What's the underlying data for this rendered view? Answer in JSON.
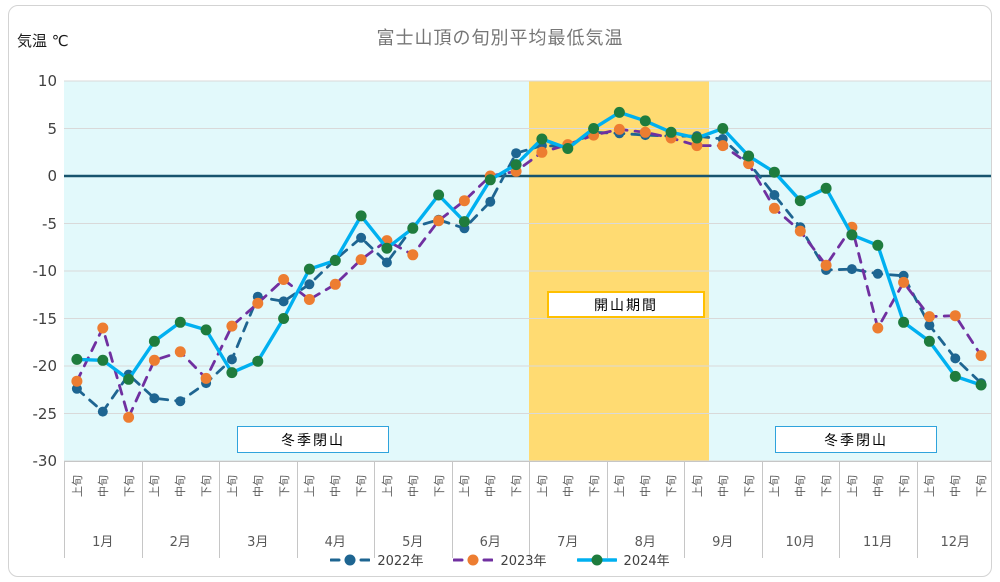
{
  "title": "富士山頂の旬別平均最低気温",
  "y_axis": {
    "label": "気温 ℃",
    "ticks": [
      10,
      5,
      0,
      -5,
      -10,
      -15,
      -20,
      -25,
      -30
    ],
    "min": -30,
    "max": 10
  },
  "x_axis": {
    "period_labels": [
      "上旬",
      "中旬",
      "下旬"
    ],
    "months": [
      "1月",
      "2月",
      "3月",
      "4月",
      "5月",
      "6月",
      "7月",
      "8月",
      "9月",
      "10月",
      "11月",
      "12月"
    ]
  },
  "annotations": {
    "open_season": "開山期間",
    "winter_closed_left": "冬季閉山",
    "winter_closed_right": "冬季閉山"
  },
  "colors": {
    "plot_bg": "#e2f9fb",
    "grid": "#d9d9d9",
    "zero_line": "#17546e",
    "band": "#ffdb72",
    "title": "#767676",
    "open_season_border": "#ffc000",
    "winter_border": "#2fa3dc"
  },
  "chart_data": {
    "type": "line",
    "title": "富士山頂の旬別平均最低気温",
    "ylabel": "気温 ℃",
    "ylim": [
      -30,
      10
    ],
    "grid": true,
    "legend_position": "bottom",
    "x_structure": "12 months x 3 periods (上旬/中旬/下旬)",
    "categories": [
      "1月上旬",
      "1月中旬",
      "1月下旬",
      "2月上旬",
      "2月中旬",
      "2月下旬",
      "3月上旬",
      "3月中旬",
      "3月下旬",
      "4月上旬",
      "4月中旬",
      "4月下旬",
      "5月上旬",
      "5月中旬",
      "5月下旬",
      "6月上旬",
      "6月中旬",
      "6月下旬",
      "7月上旬",
      "7月中旬",
      "7月下旬",
      "8月上旬",
      "8月中旬",
      "8月下旬",
      "9月上旬",
      "9月中旬",
      "9月下旬",
      "10月上旬",
      "10月中旬",
      "10月下旬",
      "11月上旬",
      "11月中旬",
      "11月下旬",
      "12月上旬",
      "12月中旬",
      "12月下旬"
    ],
    "series": [
      {
        "name": "2022年",
        "line_color": "#1e6591",
        "marker_color": "#1e6591",
        "dashed": true,
        "values": [
          -22.4,
          -24.8,
          -20.9,
          -23.4,
          -23.7,
          -21.8,
          -19.3,
          -12.7,
          -13.2,
          -11.4,
          -8.8,
          -6.5,
          -9.1,
          -5.4,
          -4.6,
          -5.5,
          -2.7,
          2.4,
          3.2,
          3.1,
          4.6,
          4.5,
          4.3,
          4.2,
          4.2,
          3.9,
          1.4,
          -2.0,
          -5.4,
          -9.9,
          -9.8,
          -10.3,
          -10.5,
          -15.7,
          -19.2,
          -21.8
        ]
      },
      {
        "name": "2023年",
        "line_color": "#7030a0",
        "marker_color": "#ed7d31",
        "dashed": true,
        "values": [
          -21.6,
          -16.0,
          -25.4,
          -19.4,
          -18.5,
          -21.3,
          -15.8,
          -13.4,
          -10.9,
          -13.0,
          -11.4,
          -8.8,
          -6.8,
          -8.3,
          -4.7,
          -2.6,
          0.0,
          0.5,
          2.5,
          3.3,
          4.3,
          4.9,
          4.6,
          4.0,
          3.2,
          3.2,
          1.3,
          -3.4,
          -5.8,
          -9.4,
          -5.4,
          -16.0,
          -11.2,
          -14.8,
          -14.7,
          -18.9
        ]
      },
      {
        "name": "2024年",
        "line_color": "#00b0f0",
        "marker_color": "#1f7c3d",
        "dashed": false,
        "values": [
          -19.3,
          -19.4,
          -21.4,
          -17.4,
          -15.4,
          -16.2,
          -20.7,
          -19.5,
          -15.0,
          -9.8,
          -8.9,
          -4.2,
          -7.6,
          -5.5,
          -2.0,
          -4.8,
          -0.4,
          1.2,
          3.9,
          2.9,
          5.0,
          6.7,
          5.8,
          4.6,
          4.0,
          5.0,
          2.1,
          0.4,
          -2.6,
          -1.3,
          -6.2,
          -7.3,
          -15.4,
          -17.4,
          -21.1,
          -22.0
        ]
      }
    ],
    "highlight_band": {
      "label": "開山期間",
      "from": "7月上旬",
      "to": "9月上旬"
    }
  }
}
